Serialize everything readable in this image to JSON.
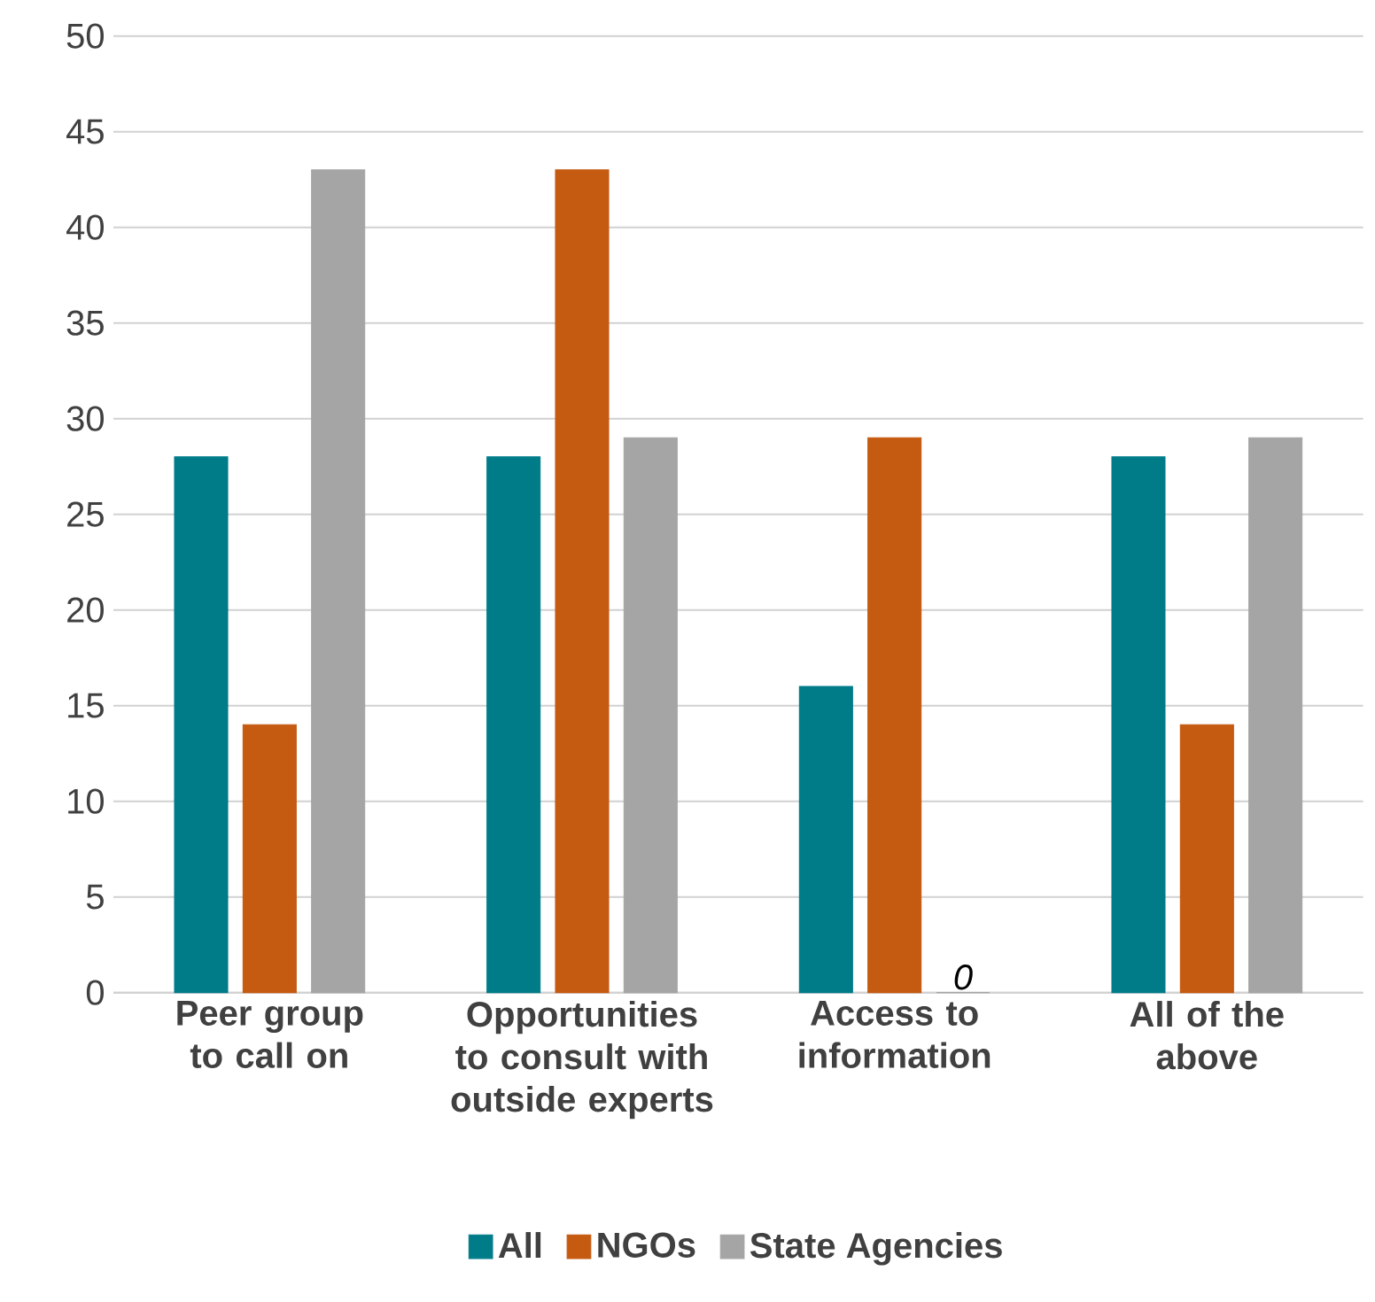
{
  "chart_data": {
    "type": "bar",
    "categories": [
      "Peer group to call on",
      "Opportunities to consult with outside experts",
      "Access to information",
      "All of the above"
    ],
    "series": [
      {
        "name": "All",
        "color": "#007c89",
        "values": [
          28,
          28,
          16,
          28
        ]
      },
      {
        "name": "NGOs",
        "color": "#c55a11",
        "values": [
          14,
          43,
          29,
          14
        ]
      },
      {
        "name": "State Agencies",
        "color": "#a5a5a5",
        "values": [
          43,
          29,
          0,
          29
        ],
        "value_labels": [
          null,
          null,
          "0",
          null
        ]
      }
    ],
    "ylim": [
      0,
      50
    ],
    "yticks": [
      0,
      5,
      10,
      15,
      20,
      25,
      30,
      35,
      40,
      45,
      50
    ],
    "grid": "y",
    "legend": "bottom"
  }
}
